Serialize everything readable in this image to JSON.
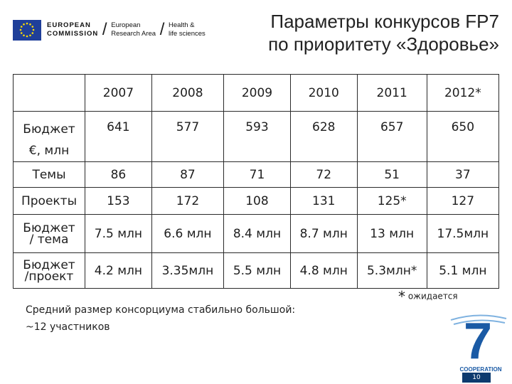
{
  "header": {
    "logo_line1_a": "EUROPEAN",
    "logo_line1_b": "COMMISSION",
    "logo_line2_a": "European",
    "logo_line2_b": "Research Area",
    "logo_line3_a": "Health &",
    "logo_line3_b": "life sciences",
    "title_line1": "Параметры конкурсов FP7",
    "title_line2": "по приоритету «Здоровье»"
  },
  "table": {
    "years": [
      "2007",
      "2008",
      "2009",
      "2010",
      "2011",
      "2012*"
    ],
    "rows": [
      {
        "label_a": "Бюджет",
        "label_b": "€, млн",
        "values": [
          "641",
          "577",
          "593",
          "628",
          "657",
          "650"
        ]
      },
      {
        "label_a": "Темы",
        "values": [
          "86",
          "87",
          "71",
          "72",
          "51",
          "37"
        ]
      },
      {
        "label_a": "Проекты",
        "values": [
          "153",
          "172",
          "108",
          "131",
          "125*",
          "127"
        ]
      },
      {
        "label_a": "Бюджет",
        "label_b": "/ тема",
        "values": [
          "7.5 млн",
          "6.6 млн",
          "8.4 млн",
          "8.7 млн",
          "13 млн",
          "17.5млн"
        ]
      },
      {
        "label_a": "Бюджет",
        "label_b": "/проект",
        "values": [
          "4.2 млн",
          "3.35млн",
          "5.5 млн",
          "4.8 млн",
          "5.3млн*",
          "5.1 млн"
        ]
      }
    ]
  },
  "footnote": {
    "star": "*",
    "text": "ожидается"
  },
  "note": {
    "line1": "Средний размер консорциума стабильно большой:",
    "line2": "~12 участников"
  },
  "fp7_logo": {
    "label": "COOPERATION",
    "digit": "7"
  },
  "page_number": "10",
  "colors": {
    "flag_blue": "#1f3f99",
    "flag_star": "#ffdd00",
    "fp7_blue": "#1a5aa5",
    "fp7_light": "#7fb2e0"
  }
}
